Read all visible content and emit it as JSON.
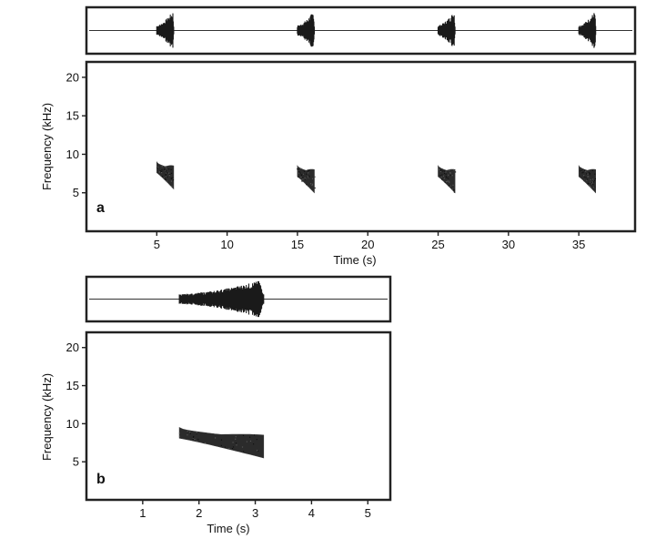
{
  "chart_data": [
    {
      "type": "spectrogram",
      "panel_label": "a",
      "xlabel": "Time (s)",
      "ylabel": "Frequency (kHz)",
      "xlim": [
        0,
        39
      ],
      "ylim": [
        0,
        22
      ],
      "xticks": [
        5,
        10,
        15,
        20,
        25,
        30,
        35
      ],
      "yticks": [
        5,
        10,
        15,
        20
      ],
      "calls": [
        {
          "start": 5.0,
          "end": 6.2,
          "f_high": 9.0,
          "f_low": 5.5
        },
        {
          "start": 15.0,
          "end": 16.2,
          "f_high": 8.5,
          "f_low": 5.0
        },
        {
          "start": 25.0,
          "end": 26.2,
          "f_high": 8.5,
          "f_low": 5.0
        },
        {
          "start": 35.0,
          "end": 36.2,
          "f_high": 8.5,
          "f_low": 5.0
        }
      ],
      "oscillogram": true
    },
    {
      "type": "spectrogram",
      "panel_label": "b",
      "xlabel": "Time (s)",
      "ylabel": "Frequency (kHz)",
      "xlim": [
        0,
        5.4
      ],
      "ylim": [
        0,
        22
      ],
      "xticks": [
        1,
        2,
        3,
        4,
        5
      ],
      "yticks": [
        5,
        10,
        15,
        20
      ],
      "calls": [
        {
          "start": 1.65,
          "end": 3.15,
          "f_high": 9.5,
          "f_low": 5.5
        }
      ],
      "oscillogram": true
    }
  ]
}
